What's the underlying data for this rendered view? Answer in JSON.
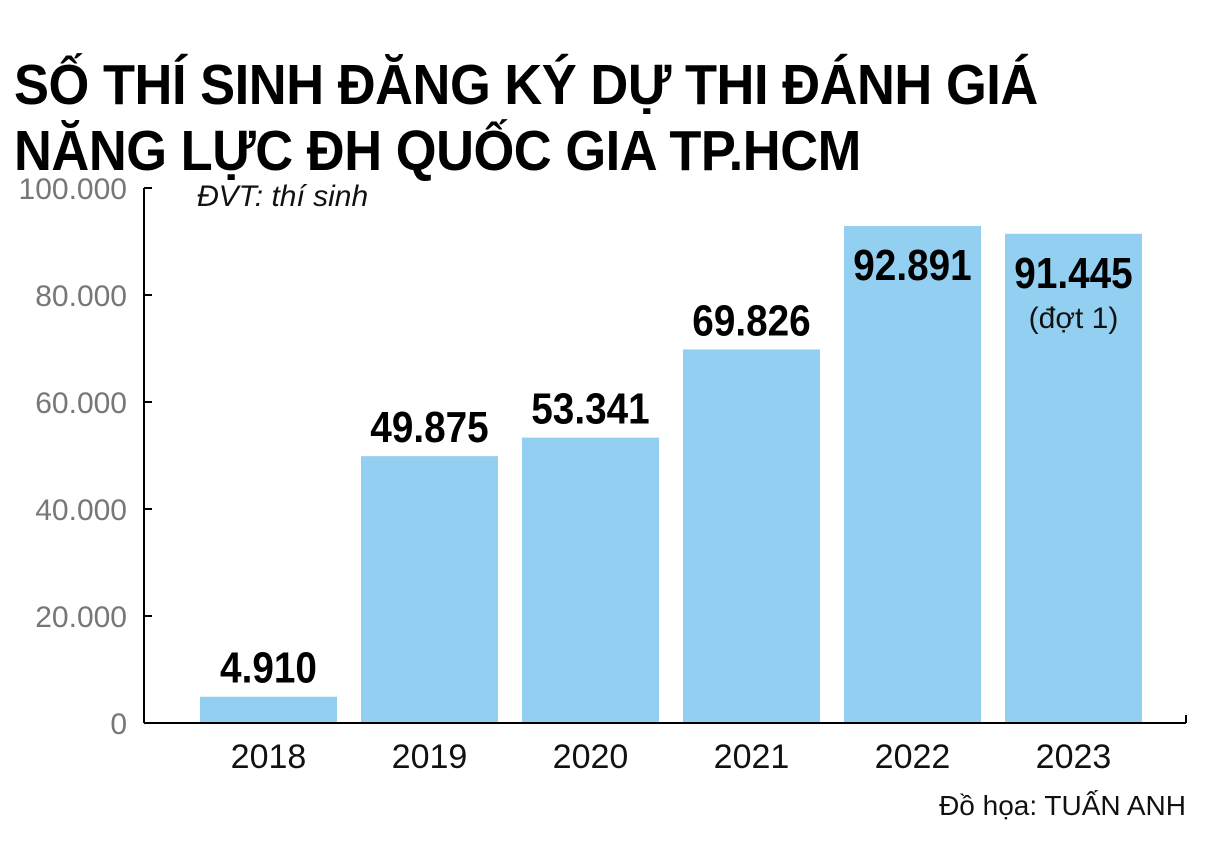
{
  "title_line1": "SỐ THÍ SINH ĐĂNG KÝ DỰ THI ĐÁNH GIÁ",
  "title_line2": "NĂNG LỰC ĐH QUỐC GIA TP.HCM",
  "unit_note": "ĐVT: thí sinh",
  "credit": "Đồ họa: TUẤN ANH",
  "chart_data": {
    "type": "bar",
    "categories": [
      "2018",
      "2019",
      "2020",
      "2021",
      "2022",
      "2023"
    ],
    "values": [
      4910,
      49875,
      53341,
      69826,
      92891,
      91445
    ],
    "value_labels": [
      "4.910",
      "49.875",
      "53.341",
      "69.826",
      "92.891",
      "91.445"
    ],
    "value_notes": [
      "",
      "",
      "",
      "",
      "",
      "(đợt 1)"
    ],
    "yticks": [
      0,
      20000,
      40000,
      60000,
      80000,
      100000
    ],
    "ytick_labels": [
      "0",
      "20.000",
      "40.000",
      "60.000",
      "80.000",
      "100.000"
    ],
    "ylim": [
      0,
      100000
    ],
    "grid": false,
    "bar_color": "#93cff0"
  }
}
